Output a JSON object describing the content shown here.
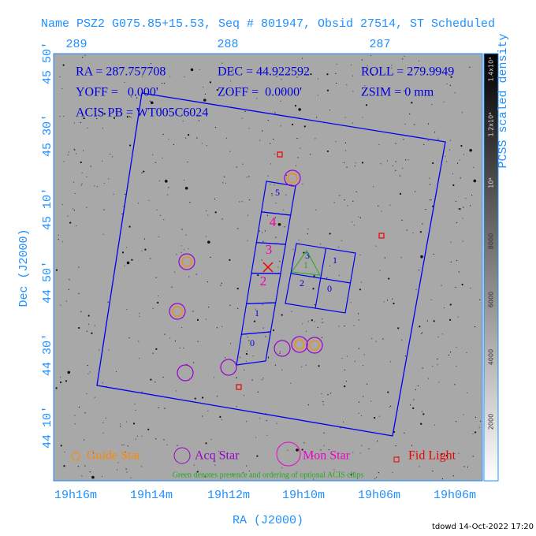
{
  "title": "Name PSZ2 G075.85+15.53, Seq # 801947, Obsid 27514, ST Scheduled",
  "top_axis": {
    "labels": [
      "289",
      "288",
      "287"
    ]
  },
  "left_axis": {
    "title": "Dec (J2000)",
    "labels": [
      "45 50'",
      "45 30'",
      "45 10'",
      "44 50'",
      "44 30'",
      "44 10'"
    ]
  },
  "bottom_axis": {
    "title": "RA (J2000)",
    "labels": [
      "19h16m",
      "19h14m",
      "19h12m",
      "19h10m",
      "19h06m",
      "19h06m"
    ]
  },
  "info": {
    "ra": "RA = 287.757708",
    "dec": "DEC = 44.922592",
    "roll": "ROLL = 279.9949",
    "yoff": "YOFF =   0.000'",
    "zoff": "ZOFF =  0.0000'",
    "zsim": "ZSIM = 0 mm",
    "acis_pb": "ACIS PB = WT005C6024"
  },
  "acis_s_chips": [
    "5",
    "4",
    "3",
    "2",
    "1",
    "0"
  ],
  "acis_i_chips": [
    "3",
    "1",
    "2",
    "0"
  ],
  "optional_chip": "1",
  "legend": {
    "guide": "Guide Star",
    "acq": "Acq Star",
    "mon": "Mon Star",
    "fid": "Fid Light",
    "note": "Green denotes presence and ordering of optional ACIS chips"
  },
  "colorbar": {
    "title": "PCSS scaled density",
    "labels": [
      "1.4x10⁴",
      "1.2x10⁴",
      "10⁴",
      "8000",
      "6000",
      "4000",
      "2000"
    ]
  },
  "footer": "tdowd 14-Oct-2022 17:20"
}
